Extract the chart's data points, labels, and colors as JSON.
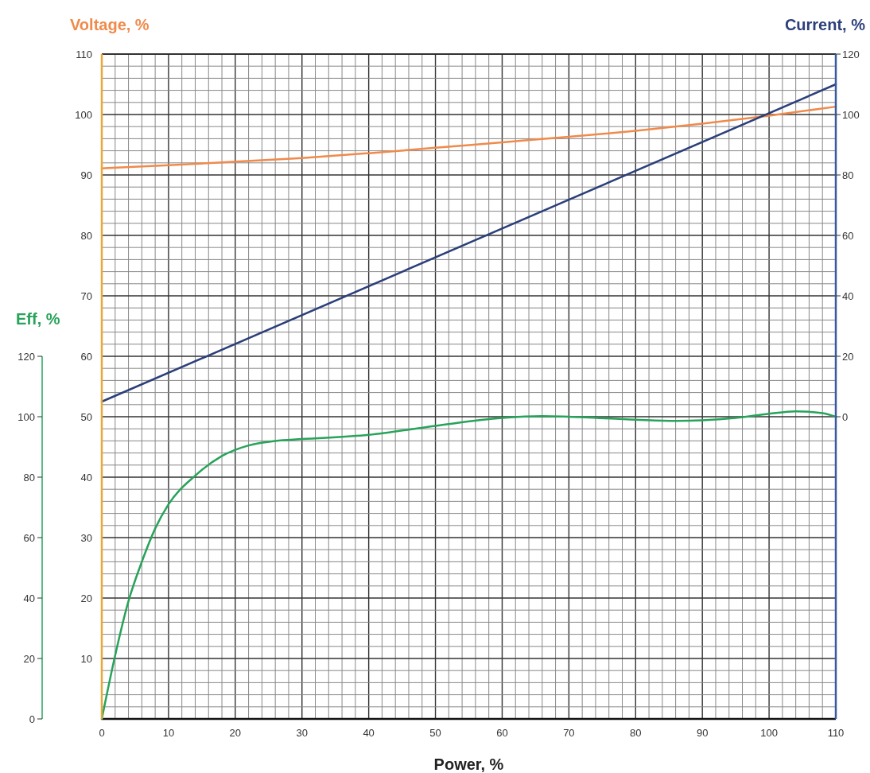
{
  "chart_data": {
    "type": "line",
    "xlabel": "Power, %",
    "ylabel": "Voltage, %",
    "y2label": "Current, %",
    "y3label": "Eff, %",
    "xlim": [
      0,
      110
    ],
    "xticks": [
      0,
      {
        "value": 2,
        "label": null
      },
      {
        "value": 4,
        "label": null
      },
      {
        "value": 6,
        "label": null
      },
      {
        "value": 8,
        "label": null
      },
      10,
      {
        "value": 12,
        "label": null
      },
      {
        "value": 14,
        "label": null
      },
      {
        "value": 16,
        "label": null
      },
      {
        "value": 18,
        "label": null
      },
      20,
      {
        "value": 22,
        "label": null
      },
      {
        "value": 24,
        "label": null
      },
      {
        "value": 26,
        "label": null
      },
      {
        "value": 28,
        "label": null
      },
      30,
      {
        "value": 32,
        "label": null
      },
      {
        "value": 34,
        "label": null
      },
      {
        "value": 36,
        "label": null
      },
      {
        "value": 38,
        "label": null
      },
      40,
      {
        "value": 42,
        "label": null
      },
      {
        "value": 44,
        "label": null
      },
      {
        "value": 46,
        "label": null
      },
      {
        "value": 48,
        "label": null
      },
      50,
      {
        "value": 52,
        "label": null
      },
      {
        "value": 54,
        "label": null
      },
      {
        "value": 56,
        "label": null
      },
      {
        "value": 58,
        "label": null
      },
      60,
      {
        "value": 62,
        "label": null
      },
      {
        "value": 64,
        "label": null
      },
      {
        "value": 66,
        "label": null
      },
      {
        "value": 68,
        "label": null
      },
      70,
      {
        "value": 72,
        "label": null
      },
      {
        "value": 74,
        "label": null
      },
      {
        "value": 76,
        "label": null
      },
      {
        "value": 78,
        "label": null
      },
      80,
      {
        "value": 82,
        "label": null
      },
      {
        "value": 84,
        "label": null
      },
      {
        "value": 86,
        "label": null
      },
      {
        "value": 88,
        "label": null
      },
      90,
      {
        "value": 92,
        "label": null
      },
      {
        "value": 94,
        "label": null
      },
      {
        "value": 96,
        "label": null
      },
      {
        "value": 98,
        "label": null
      },
      100,
      {
        "value": 102,
        "label": null
      },
      {
        "value": 104,
        "label": null
      },
      {
        "value": 106,
        "label": null
      },
      {
        "value": 108,
        "label": null
      },
      110
    ],
    "ylim": [
      0,
      110
    ],
    "yticks": [
      {
        "value": 2,
        "label": null
      },
      {
        "value": 4,
        "label": null
      },
      {
        "value": 6,
        "label": null
      },
      {
        "value": 8,
        "label": null
      },
      10,
      {
        "value": 12,
        "label": null
      },
      {
        "value": 14,
        "label": null
      },
      {
        "value": 16,
        "label": null
      },
      {
        "value": 18,
        "label": null
      },
      20,
      {
        "value": 22,
        "label": null
      },
      {
        "value": 24,
        "label": null
      },
      {
        "value": 26,
        "label": null
      },
      {
        "value": 28,
        "label": null
      },
      30,
      {
        "value": 32,
        "label": null
      },
      {
        "value": 34,
        "label": null
      },
      {
        "value": 36,
        "label": null
      },
      {
        "value": 38,
        "label": null
      },
      40,
      {
        "value": 42,
        "label": null
      },
      {
        "value": 44,
        "label": null
      },
      {
        "value": 46,
        "label": null
      },
      {
        "value": 48,
        "label": null
      },
      50,
      {
        "value": 52,
        "label": null
      },
      {
        "value": 54,
        "label": null
      },
      {
        "value": 56,
        "label": null
      },
      {
        "value": 58,
        "label": null
      },
      60,
      {
        "value": 62,
        "label": null
      },
      {
        "value": 64,
        "label": null
      },
      {
        "value": 66,
        "label": null
      },
      {
        "value": 68,
        "label": null
      },
      70,
      {
        "value": 72,
        "label": null
      },
      {
        "value": 74,
        "label": null
      },
      {
        "value": 76,
        "label": null
      },
      {
        "value": 78,
        "label": null
      },
      80,
      {
        "value": 82,
        "label": null
      },
      {
        "value": 84,
        "label": null
      },
      {
        "value": 86,
        "label": null
      },
      {
        "value": 88,
        "label": null
      },
      90,
      {
        "value": 92,
        "label": null
      },
      {
        "value": 94,
        "label": null
      },
      {
        "value": 96,
        "label": null
      },
      {
        "value": 98,
        "label": null
      },
      100,
      {
        "value": 102,
        "label": null
      },
      {
        "value": 104,
        "label": null
      },
      {
        "value": 106,
        "label": null
      },
      {
        "value": 108,
        "label": null
      },
      110
    ],
    "y2lim": [
      -100,
      120
    ],
    "y2ticks": [
      0,
      20,
      40,
      60,
      80,
      100,
      120
    ],
    "y3lim": [
      0,
      220
    ],
    "y3ticks": [
      0,
      20,
      40,
      60,
      80,
      100,
      120
    ],
    "grid": true,
    "series": [
      {
        "color": "#f08a4b",
        "x": [
          0,
          10,
          20,
          30,
          40,
          50,
          60,
          70,
          80,
          90,
          100,
          110
        ],
        "values": [
          91.1,
          91.6,
          92.2,
          92.8,
          93.6,
          94.5,
          95.4,
          96.3,
          97.3,
          98.5,
          99.8,
          101.3
        ]
      },
      {
        "color": "#2b3f7a",
        "axis": "y2",
        "x": [
          0,
          110
        ],
        "values": [
          5,
          110
        ]
      },
      {
        "color": "#27a35a",
        "axis": "y3",
        "x": [
          0,
          2,
          4,
          6,
          8,
          10,
          14,
          18,
          22,
          26,
          30,
          40,
          50,
          60,
          66,
          70,
          80,
          86,
          90,
          95,
          100,
          104,
          108,
          110
        ],
        "values": [
          0,
          21,
          39,
          52,
          63,
          71,
          80.5,
          87,
          90.5,
          92,
          92.6,
          94,
          97,
          99.6,
          100.2,
          100,
          99,
          98.6,
          98.8,
          99.6,
          101,
          101.8,
          101.2,
          100
        ]
      }
    ]
  }
}
